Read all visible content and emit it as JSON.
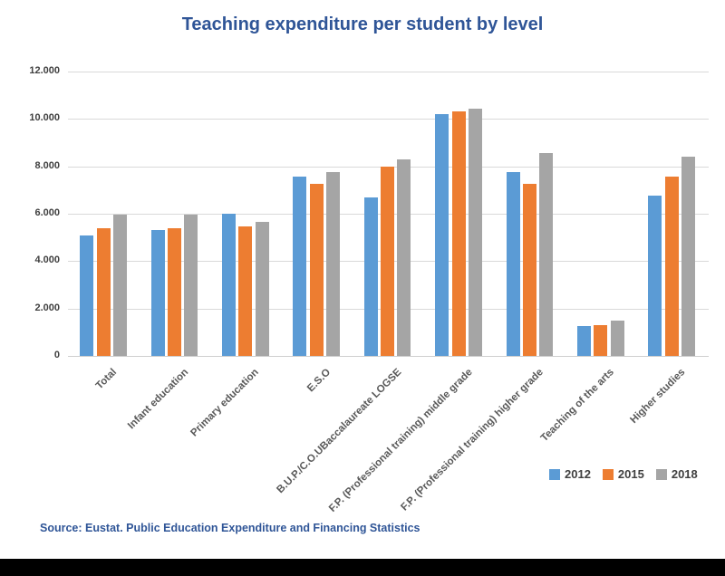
{
  "title": "Teaching expenditure per student by level",
  "source_note": "Source: Eustat. Public Education Expenditure and Financing Statistics",
  "colors": {
    "title_blue": "#2F5597",
    "gridline": "#D9D9D9",
    "y_tick_label": "#404040",
    "x_category_label": "#595959",
    "legend_label": "#404040",
    "footer_bar": "#000000",
    "series_2012": "#5B9BD5",
    "series_2015": "#ED7D31",
    "series_2018": "#A5A5A5"
  },
  "chart_data": {
    "type": "bar",
    "title": "Teaching expenditure per student by level",
    "xlabel": "",
    "ylabel": "",
    "ylim": [
      0,
      12000
    ],
    "grid": true,
    "legend_position": "bottom-right",
    "y_tick_values": [
      0,
      2000,
      4000,
      6000,
      8000,
      10000,
      12000
    ],
    "y_tick_labels": [
      "0",
      "2.000",
      "4.000",
      "6.000",
      "8.000",
      "10.000",
      "12.000"
    ],
    "categories": [
      "Total",
      "Infant education",
      "Primary education",
      "E.S.O",
      "B.U.P./C.O.UBaccalaureate LOGSE",
      "F.P. (Professional training) middle grade",
      "F.P. (Professional training) higher grade",
      "Teaching of the arts",
      "Higher studies"
    ],
    "series": [
      {
        "name": "2012",
        "color": "#5B9BD5",
        "values": [
          5100,
          5300,
          6000,
          7550,
          6700,
          10200,
          7750,
          1250,
          6750
        ]
      },
      {
        "name": "2015",
        "color": "#ED7D31",
        "values": [
          5400,
          5400,
          5450,
          7250,
          8000,
          10300,
          7250,
          1300,
          7550
        ]
      },
      {
        "name": "2018",
        "color": "#A5A5A5",
        "values": [
          5950,
          5950,
          5650,
          7750,
          8300,
          10450,
          8550,
          1500,
          8400
        ]
      }
    ]
  }
}
